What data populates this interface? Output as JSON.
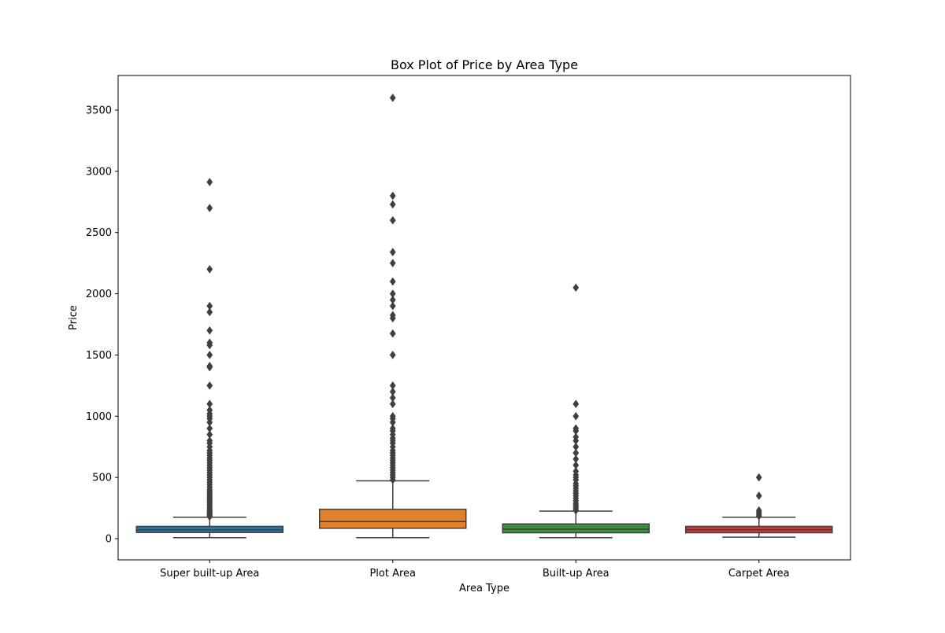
{
  "chart_data": {
    "type": "box",
    "title": "Box Plot of Price by Area Type",
    "xlabel": "Area Type",
    "ylabel": "Price",
    "ylim": [
      -175,
      3765
    ],
    "yticks": [
      0,
      500,
      1000,
      1500,
      2000,
      2500,
      3000,
      3500
    ],
    "grid": false,
    "categories": [
      "Super built-up  Area",
      "Plot  Area",
      "Built-up  Area",
      "Carpet  Area"
    ],
    "series": [
      {
        "category": "Super built-up  Area",
        "color": "#3274a1",
        "whisker_low": 8,
        "q1": 50,
        "median": 72,
        "q3": 100,
        "whisker_high": 175,
        "outliers": [
          180,
          190,
          200,
          210,
          220,
          235,
          250,
          265,
          280,
          295,
          310,
          325,
          340,
          355,
          370,
          385,
          400,
          420,
          440,
          460,
          480,
          500,
          520,
          540,
          560,
          580,
          600,
          620,
          640,
          660,
          680,
          700,
          720,
          750,
          780,
          800,
          850,
          900,
          950,
          980,
          1000,
          1020,
          1050,
          1100,
          1250,
          1400,
          1410,
          1500,
          1580,
          1600,
          1700,
          1850,
          1900,
          2200,
          2700,
          2912
        ]
      },
      {
        "category": "Plot  Area",
        "color": "#e1812c",
        "whisker_low": 8,
        "q1": 85,
        "median": 140,
        "q3": 240,
        "whisker_high": 472,
        "outliers": [
          480,
          500,
          520,
          540,
          560,
          580,
          600,
          620,
          640,
          660,
          680,
          700,
          720,
          750,
          780,
          800,
          820,
          850,
          880,
          900,
          950,
          980,
          1000,
          1100,
          1150,
          1200,
          1250,
          1500,
          1675,
          1800,
          1825,
          1900,
          1950,
          2000,
          2100,
          2250,
          2340,
          2600,
          2730,
          2800,
          3600
        ]
      },
      {
        "category": "Built-up  Area",
        "color": "#3a923a",
        "whisker_low": 8,
        "q1": 48,
        "median": 78,
        "q3": 120,
        "whisker_high": 225,
        "outliers": [
          230,
          245,
          260,
          275,
          290,
          310,
          330,
          350,
          370,
          390,
          410,
          430,
          450,
          480,
          500,
          520,
          550,
          600,
          650,
          700,
          750,
          800,
          830,
          880,
          900,
          1000,
          1100,
          2050
        ]
      },
      {
        "category": "Carpet  Area",
        "color": "#c03d3e",
        "whisker_low": 12,
        "q1": 48,
        "median": 72,
        "q3": 100,
        "whisker_high": 175,
        "outliers": [
          185,
          200,
          215,
          230,
          350,
          500
        ]
      }
    ]
  }
}
